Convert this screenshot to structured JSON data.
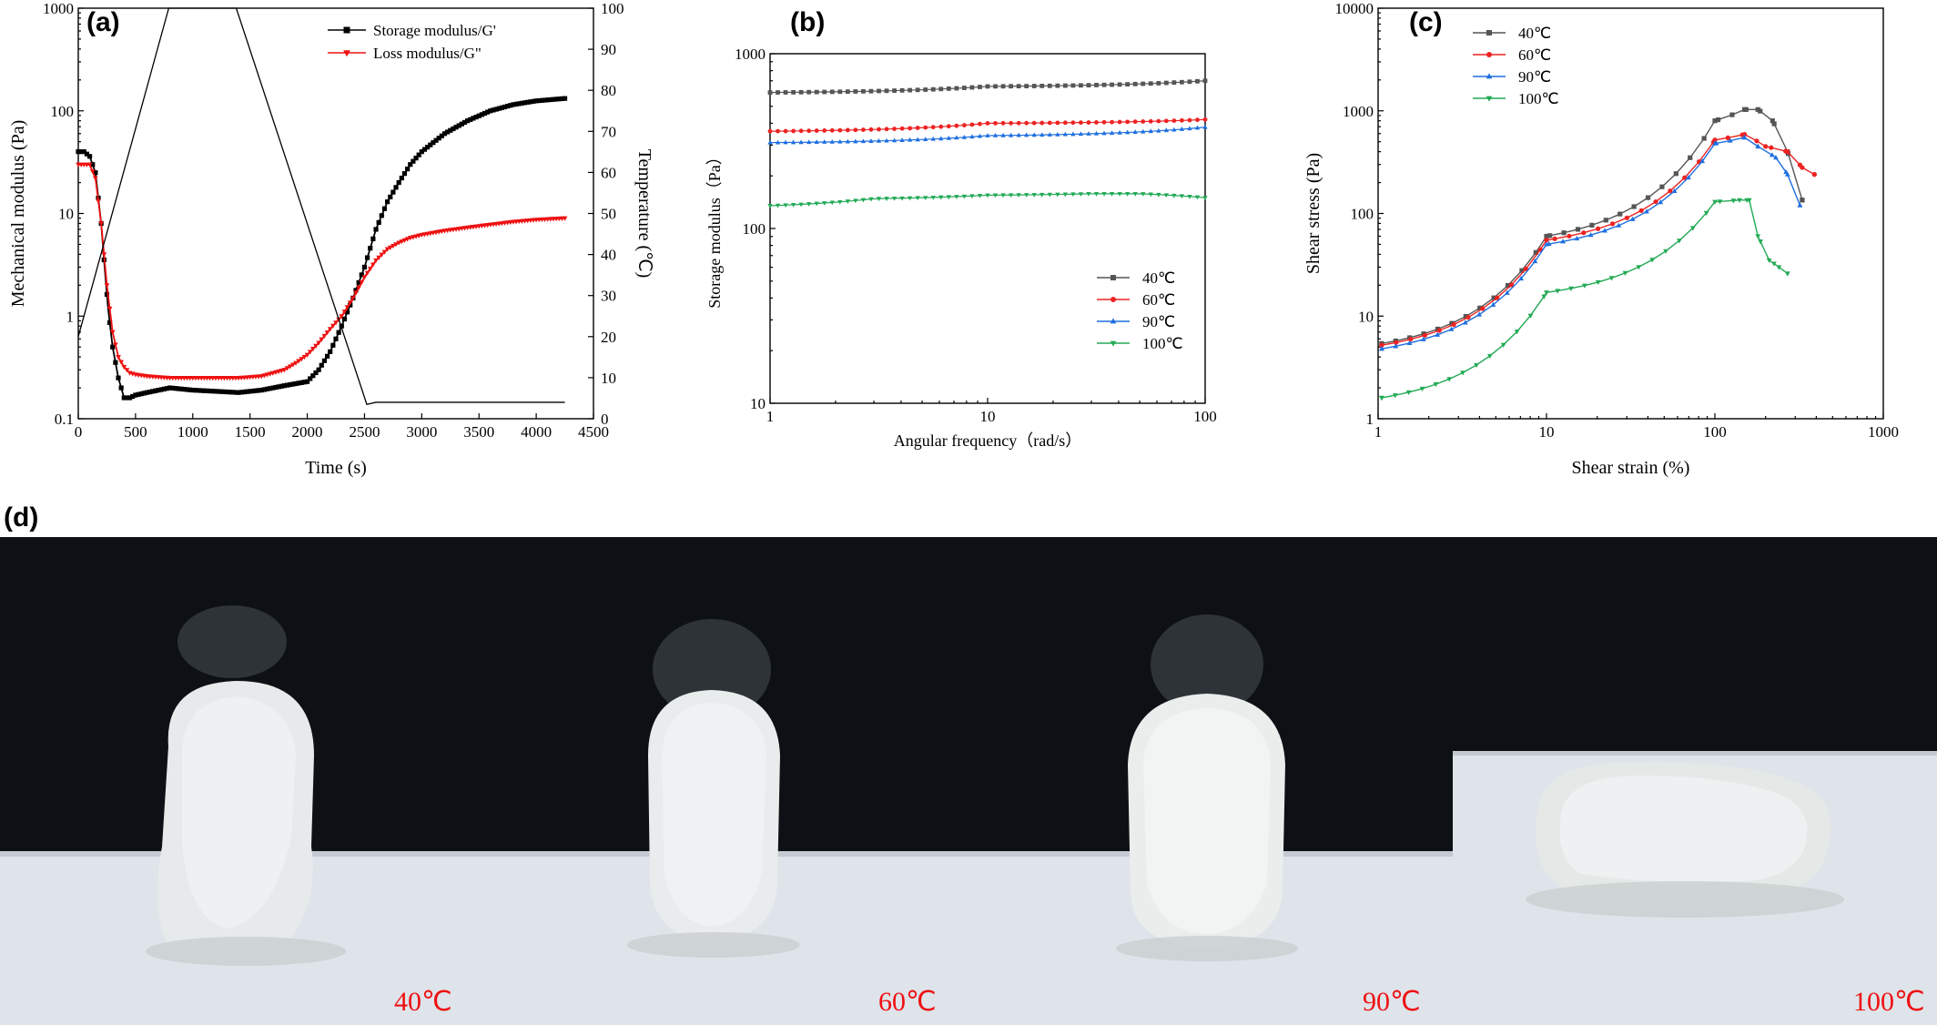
{
  "panels": {
    "a": "(a)",
    "b": "(b)",
    "c": "(c)",
    "d": "(d)"
  },
  "colors": {
    "black": "#000000",
    "red": "#ee1111",
    "c40": "#555555",
    "c60": "#ee2222",
    "c90": "#1e6fe0",
    "c100": "#22aa55"
  },
  "chart_data": [
    {
      "id": "a",
      "type": "line",
      "xlabel": "Time (s)",
      "ylabel": "Mechanical modulus (Pa)",
      "ylabel_right": "Temperature (℃)",
      "xlim": [
        0,
        4500
      ],
      "ylim": [
        0.1,
        1000
      ],
      "ylim_right": [
        0,
        100
      ],
      "yscale": "log",
      "xticks": [
        0,
        500,
        1000,
        1500,
        2000,
        2500,
        3000,
        3500,
        4000,
        4500
      ],
      "yticks": [
        0.1,
        1,
        10,
        100,
        1000
      ],
      "yticks_right": [
        0,
        10,
        20,
        30,
        40,
        50,
        60,
        70,
        80,
        90,
        100
      ],
      "legend_position": "top-right",
      "series": [
        {
          "name": "Storage modulus/G'",
          "marker": "square",
          "color": "#000000",
          "x": [
            0,
            50,
            100,
            150,
            200,
            230,
            260,
            300,
            350,
            400,
            450,
            500,
            600,
            800,
            1000,
            1200,
            1400,
            1600,
            1800,
            2000,
            2100,
            2200,
            2300,
            2400,
            2500,
            2600,
            2700,
            2800,
            2900,
            3000,
            3200,
            3400,
            3600,
            3800,
            4000,
            4250
          ],
          "y": [
            40,
            40,
            36,
            25,
            8,
            3,
            1.2,
            0.5,
            0.25,
            0.16,
            0.16,
            0.17,
            0.18,
            0.2,
            0.19,
            0.185,
            0.18,
            0.19,
            0.21,
            0.23,
            0.3,
            0.45,
            0.8,
            1.5,
            3,
            7,
            13,
            20,
            30,
            40,
            60,
            80,
            100,
            115,
            125,
            132
          ]
        },
        {
          "name": "Loss modulus/G\"",
          "marker": "triangle-down",
          "color": "#ee1111",
          "x": [
            0,
            100,
            150,
            200,
            250,
            300,
            350,
            400,
            450,
            500,
            600,
            800,
            1000,
            1200,
            1400,
            1600,
            1800,
            1900,
            2000,
            2100,
            2200,
            2300,
            2400,
            2500,
            2600,
            2700,
            2800,
            2900,
            3000,
            3200,
            3400,
            3600,
            3800,
            4000,
            4250
          ],
          "y": [
            30,
            30,
            22,
            8,
            2,
            0.7,
            0.4,
            0.32,
            0.28,
            0.27,
            0.26,
            0.25,
            0.25,
            0.25,
            0.25,
            0.26,
            0.3,
            0.35,
            0.42,
            0.55,
            0.75,
            1.0,
            1.5,
            2.4,
            3.5,
            4.5,
            5.2,
            5.8,
            6.2,
            6.8,
            7.3,
            7.8,
            8.3,
            8.7,
            9
          ]
        },
        {
          "name": "Temperature",
          "axis": "right",
          "color": "#000000",
          "x": [
            0,
            790,
            1380,
            2520,
            2600,
            4250
          ],
          "y": [
            20,
            100,
            100,
            3.5,
            4,
            4
          ]
        }
      ]
    },
    {
      "id": "b",
      "type": "scatter",
      "xlabel": "Angular frequency（rad/s）",
      "ylabel": "Storage modulus（Pa）",
      "xscale": "log",
      "yscale": "log",
      "xlim": [
        1,
        100
      ],
      "ylim": [
        10,
        1000
      ],
      "xticks": [
        1,
        10,
        100
      ],
      "yticks": [
        10,
        100,
        1000
      ],
      "legend_position": "bottom-right",
      "series": [
        {
          "name": "40℃",
          "marker": "square",
          "color": "#555555",
          "x": [
            1,
            10,
            100
          ],
          "y": [
            600,
            650,
            700
          ]
        },
        {
          "name": "60℃",
          "marker": "circle",
          "color": "#ee2222",
          "x": [
            1,
            10,
            100
          ],
          "y": [
            360,
            400,
            420
          ]
        },
        {
          "name": "90℃",
          "marker": "triangle",
          "color": "#1e6fe0",
          "x": [
            1,
            10,
            100
          ],
          "y": [
            310,
            340,
            380
          ]
        },
        {
          "name": "100℃",
          "marker": "triangle-down",
          "color": "#22aa55",
          "x": [
            1,
            3,
            10,
            30,
            50,
            100
          ],
          "y": [
            135,
            148,
            155,
            158,
            158,
            150
          ]
        }
      ]
    },
    {
      "id": "c",
      "type": "line",
      "xlabel": "Shear strain (%)",
      "ylabel": "Shear stress (Pa)",
      "xscale": "log",
      "yscale": "log",
      "xlim": [
        1,
        1000
      ],
      "ylim": [
        1,
        10000
      ],
      "xticks": [
        1,
        10,
        100,
        1000
      ],
      "yticks": [
        1,
        10,
        100,
        1000,
        10000
      ],
      "legend_position": "top-left",
      "series": [
        {
          "name": "40℃",
          "marker": "square",
          "color": "#555555",
          "x": [
            1.05,
            10,
            100,
            150,
            180,
            220,
            270,
            330
          ],
          "y": [
            5.4,
            60,
            800,
            1030,
            1030,
            800,
            400,
            135
          ]
        },
        {
          "name": "60℃",
          "marker": "circle",
          "color": "#ee2222",
          "x": [
            1.05,
            10,
            100,
            150,
            200,
            270,
            330,
            390
          ],
          "y": [
            5.2,
            55,
            520,
            590,
            450,
            400,
            280,
            240
          ]
        },
        {
          "name": "90℃",
          "marker": "triangle",
          "color": "#1e6fe0",
          "x": [
            1.05,
            10,
            100,
            150,
            180,
            230,
            270,
            320
          ],
          "y": [
            4.8,
            50,
            480,
            550,
            450,
            350,
            240,
            120
          ]
        },
        {
          "name": "100℃",
          "marker": "triangle-down",
          "color": "#22aa55",
          "x": [
            1.05,
            10,
            100,
            140,
            160,
            180,
            210,
            240,
            270
          ],
          "y": [
            1.6,
            17,
            130,
            135,
            135,
            60,
            35,
            30,
            26
          ]
        }
      ]
    }
  ],
  "photos": [
    {
      "caption": "40℃"
    },
    {
      "caption": "60℃"
    },
    {
      "caption": "90℃"
    },
    {
      "caption": "100℃"
    }
  ]
}
